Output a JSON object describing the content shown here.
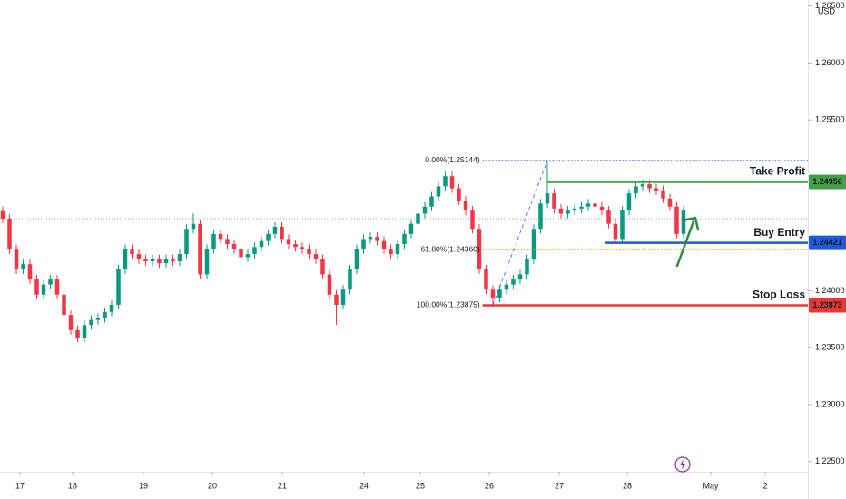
{
  "chart_data": {
    "type": "candlestick",
    "currency": "USD",
    "up_color": "#089981",
    "down_color": "#f23645",
    "open": [
      1.247,
      1.24633,
      1.24366,
      1.24188,
      1.24233,
      1.24099,
      1.23966,
      1.24055,
      1.24099,
      1.23966,
      1.23788,
      1.23655,
      1.23584,
      1.23699,
      1.23744,
      1.23761,
      1.23815,
      1.23877,
      1.24188,
      1.24366,
      1.24322,
      1.24277,
      1.24259,
      1.24277,
      1.24242,
      1.24277,
      1.24259,
      1.24322,
      1.24544,
      1.24588,
      1.24144,
      1.24366,
      1.24499,
      1.24455,
      1.2441,
      1.24366,
      1.24295,
      1.24322,
      1.24384,
      1.24437,
      1.24499,
      1.24562,
      1.24455,
      1.2441,
      1.24384,
      1.24366,
      1.24322,
      1.24277,
      1.24144,
      1.23966,
      1.23877,
      1.2401,
      1.24188,
      1.24366,
      1.24455,
      1.24473,
      1.24437,
      1.24366,
      1.24322,
      1.2441,
      1.24499,
      1.24588,
      1.24677,
      1.24739,
      1.24828,
      1.24917,
      1.25006,
      1.24899,
      1.24793,
      1.24704,
      1.24544,
      1.24188,
      1.2401,
      1.23939,
      1.2401,
      1.24055,
      1.24099,
      1.24144,
      1.24277,
      1.24544,
      1.24766,
      1.24855,
      1.24722,
      1.24677,
      1.24704,
      1.24722,
      1.24739,
      1.24766,
      1.24739,
      1.24704,
      1.24588,
      1.24455,
      1.24704,
      1.24855,
      1.24917,
      1.24935,
      1.24899,
      1.24882,
      1.2481,
      1.24739,
      1.24499
    ],
    "high": [
      1.2474,
      1.24673,
      1.24406,
      1.24273,
      1.24273,
      1.24139,
      1.24095,
      1.24139,
      1.24139,
      1.24006,
      1.23828,
      1.23695,
      1.23739,
      1.23784,
      1.23801,
      1.23855,
      1.23917,
      1.24228,
      1.24406,
      1.24406,
      1.24362,
      1.24317,
      1.24317,
      1.24317,
      1.24317,
      1.24317,
      1.24362,
      1.24584,
      1.2468,
      1.24628,
      1.24406,
      1.24539,
      1.24539,
      1.24495,
      1.2445,
      1.24406,
      1.24362,
      1.24424,
      1.24477,
      1.24539,
      1.24602,
      1.24602,
      1.24495,
      1.2445,
      1.24424,
      1.24406,
      1.24362,
      1.24317,
      1.24184,
      1.24006,
      1.2405,
      1.24228,
      1.24406,
      1.24495,
      1.24513,
      1.24513,
      1.24477,
      1.24406,
      1.2445,
      1.24539,
      1.24628,
      1.24717,
      1.24779,
      1.24868,
      1.24957,
      1.25046,
      1.25046,
      1.24939,
      1.24833,
      1.24744,
      1.24584,
      1.24228,
      1.2405,
      1.2405,
      1.24095,
      1.24139,
      1.24184,
      1.24317,
      1.24584,
      1.24806,
      1.25144,
      1.24895,
      1.24762,
      1.24744,
      1.24762,
      1.24779,
      1.24806,
      1.24806,
      1.24779,
      1.24744,
      1.24628,
      1.24744,
      1.24895,
      1.24957,
      1.24975,
      1.24975,
      1.24939,
      1.24922,
      1.2485,
      1.24779,
      1.24744
    ],
    "low": [
      1.24593,
      1.24326,
      1.24148,
      1.24148,
      1.24059,
      1.23926,
      1.23926,
      1.24015,
      1.23926,
      1.23748,
      1.23615,
      1.2355,
      1.23544,
      1.23659,
      1.23704,
      1.23721,
      1.23775,
      1.23837,
      1.24148,
      1.24282,
      1.24237,
      1.24219,
      1.24219,
      1.24202,
      1.24202,
      1.24219,
      1.24219,
      1.24282,
      1.24504,
      1.24104,
      1.24104,
      1.24326,
      1.24415,
      1.2437,
      1.24326,
      1.24255,
      1.24255,
      1.24282,
      1.24344,
      1.24397,
      1.24459,
      1.24415,
      1.2437,
      1.24344,
      1.24326,
      1.24282,
      1.24237,
      1.24104,
      1.23926,
      1.237,
      1.23837,
      1.2397,
      1.24148,
      1.24326,
      1.24415,
      1.24397,
      1.24326,
      1.24282,
      1.24282,
      1.2437,
      1.24459,
      1.24548,
      1.24637,
      1.24699,
      1.24788,
      1.24877,
      1.24859,
      1.24753,
      1.24664,
      1.24504,
      1.24148,
      1.2397,
      1.23875,
      1.23899,
      1.2397,
      1.24015,
      1.24059,
      1.24104,
      1.24237,
      1.24504,
      1.24726,
      1.24682,
      1.24637,
      1.24637,
      1.24664,
      1.24682,
      1.24699,
      1.24699,
      1.24664,
      1.24548,
      1.24421,
      1.24415,
      1.24664,
      1.24815,
      1.24877,
      1.24859,
      1.24842,
      1.2477,
      1.24699,
      1.24459,
      1.24459
    ],
    "close": [
      1.24633,
      1.24366,
      1.24188,
      1.24233,
      1.24099,
      1.23966,
      1.24055,
      1.24099,
      1.23966,
      1.23788,
      1.23655,
      1.23584,
      1.23699,
      1.23744,
      1.23761,
      1.23815,
      1.23877,
      1.24188,
      1.24366,
      1.24322,
      1.24277,
      1.24259,
      1.24277,
      1.24242,
      1.24277,
      1.24259,
      1.24322,
      1.24544,
      1.24588,
      1.24144,
      1.24366,
      1.24499,
      1.24455,
      1.2441,
      1.24366,
      1.24295,
      1.24322,
      1.24384,
      1.24437,
      1.24499,
      1.24562,
      1.24455,
      1.2441,
      1.24384,
      1.24366,
      1.24322,
      1.24277,
      1.24144,
      1.23966,
      1.23877,
      1.2401,
      1.24188,
      1.24366,
      1.24455,
      1.24473,
      1.24437,
      1.24366,
      1.24322,
      1.2441,
      1.24499,
      1.24588,
      1.24677,
      1.24739,
      1.24828,
      1.24917,
      1.25006,
      1.24899,
      1.24793,
      1.24704,
      1.24544,
      1.24188,
      1.2401,
      1.23939,
      1.2401,
      1.24055,
      1.24099,
      1.24144,
      1.24277,
      1.24544,
      1.24766,
      1.24855,
      1.24722,
      1.24677,
      1.24704,
      1.24722,
      1.24739,
      1.24766,
      1.24739,
      1.24704,
      1.24588,
      1.24455,
      1.24704,
      1.24855,
      1.24917,
      1.24935,
      1.24899,
      1.24882,
      1.2481,
      1.24739,
      1.24499,
      1.24704
    ],
    "xlim": [
      -0.4,
      118.27
    ],
    "xticks": [
      {
        "value": 2.53,
        "label": "17"
      },
      {
        "value": 10.27,
        "label": "18"
      },
      {
        "value": 20.67,
        "label": "19"
      },
      {
        "value": 30.8,
        "label": "20"
      },
      {
        "value": 41.07,
        "label": "21"
      },
      {
        "value": 53.07,
        "label": "24"
      },
      {
        "value": 61.33,
        "label": "25"
      },
      {
        "value": 71.47,
        "label": "26"
      },
      {
        "value": 81.73,
        "label": "27"
      },
      {
        "value": 91.73,
        "label": "28"
      },
      {
        "value": 104,
        "label": "May"
      },
      {
        "value": 112,
        "label": "2"
      }
    ],
    "ylim": [
      1.22411,
      1.26553
    ],
    "yticks": [
      {
        "value": 1.265,
        "label": "1.26500"
      },
      {
        "value": 1.26,
        "label": "1.26000"
      },
      {
        "value": 1.255,
        "label": "1.25500"
      },
      {
        "value": 1.24,
        "label": "1.24000"
      },
      {
        "value": 1.235,
        "label": "1.23500"
      },
      {
        "value": 1.23,
        "label": "1.23000"
      },
      {
        "value": 1.225,
        "label": "1.22500"
      }
    ],
    "reference_line": 1.24633,
    "fib_levels": [
      {
        "label": "0.00%(1.25144)",
        "value": 1.25144,
        "color": "#2962ff"
      },
      {
        "label": "61.80%(1.24360)",
        "value": 1.2436,
        "color": "#f0a020"
      },
      {
        "label": "100.00%(1.23875)",
        "value": 1.23875,
        "color": "#2962ff"
      }
    ],
    "levels": [
      {
        "name": "Take Profit",
        "value": 1.24956,
        "color": "#43a047"
      },
      {
        "name": "Buy Entry",
        "value": 1.24421,
        "color": "#1e5bd8"
      },
      {
        "name": "Stop Loss",
        "value": 1.23873,
        "color": "#e53935"
      }
    ]
  }
}
